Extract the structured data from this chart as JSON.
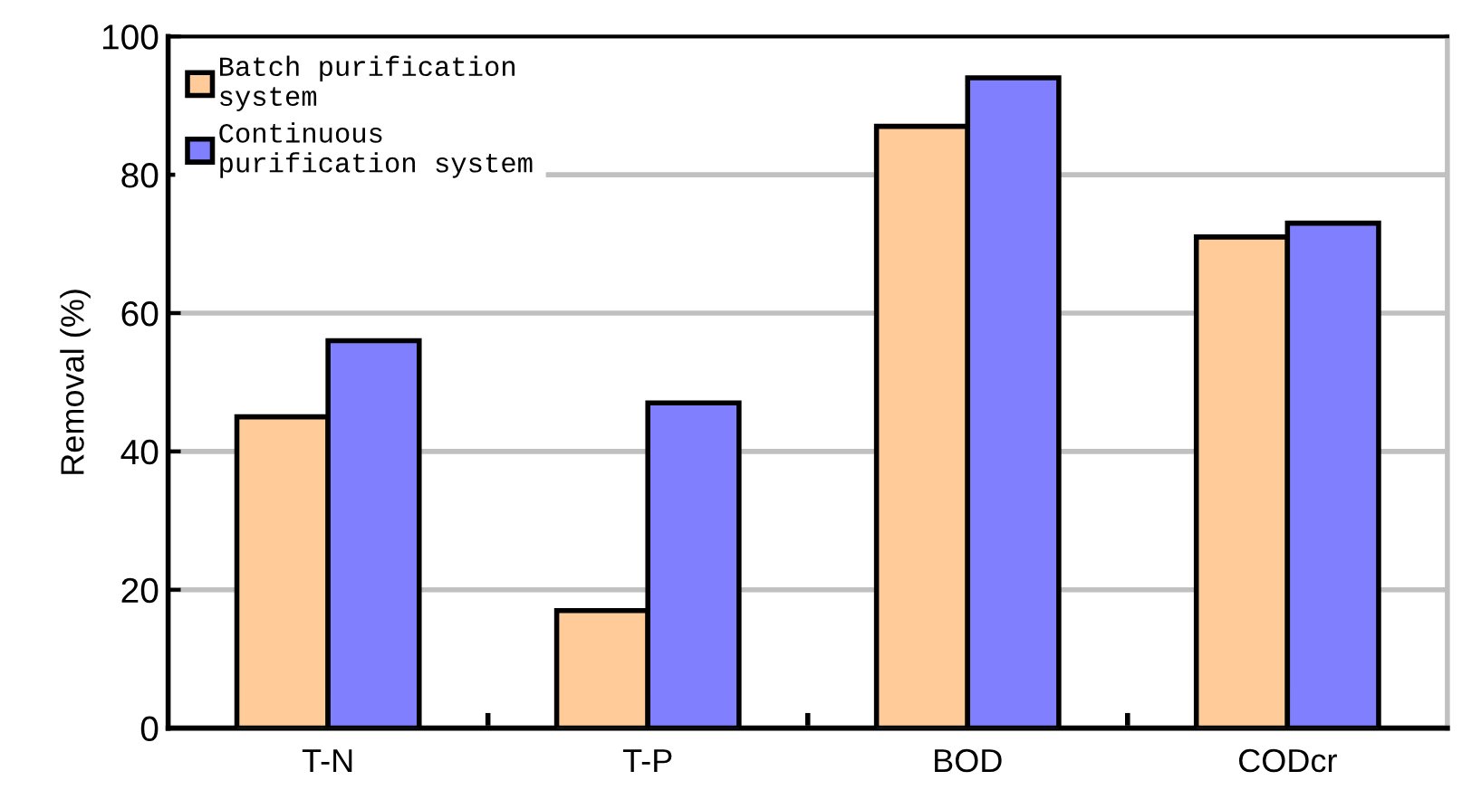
{
  "chart_data": {
    "type": "bar",
    "ylabel": "Removal (%)",
    "categories": [
      "T-N",
      "T-P",
      "BOD",
      "CODcr"
    ],
    "series": [
      {
        "name": "Batch purification\nsystem",
        "color": "#ffcc99",
        "values": [
          45,
          17,
          87,
          71
        ]
      },
      {
        "name": "Continuous\npurification system",
        "color": "#8080ff",
        "values": [
          56,
          47,
          94,
          73
        ]
      }
    ],
    "ylim": [
      0,
      100
    ],
    "yticks": [
      0,
      20,
      40,
      60,
      80,
      100
    ],
    "grid": "y",
    "legend": "top left"
  }
}
